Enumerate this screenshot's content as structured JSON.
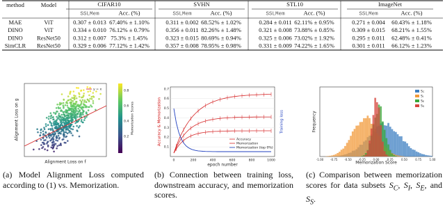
{
  "table": {
    "columns": [
      "method",
      "Model"
    ],
    "groups": [
      "CIFAR10",
      "SVHN",
      "STL10",
      "ImageNet"
    ],
    "subcolumns": [
      "SSLMem",
      "Acc. (%)"
    ],
    "rows": [
      [
        "MAE",
        "ViT",
        "0.307 ± 0.013",
        "67.40% ± 1.10%",
        "0.311 ± 0.002",
        "68.52% ± 1.02%",
        "0.284 ± 0.011",
        "62.11% ± 0.95%",
        "0.271 ± 0.004",
        "60.43% ± 1.18%"
      ],
      [
        "DINO",
        "ViT",
        "0.334 ± 0.010",
        "76.12% ± 0.79%",
        "0.356 ± 0.011",
        "82.26% ± 1.48%",
        "0.321 ± 0.008",
        "73.88% ± 0.85%",
        "0.309 ± 0.015",
        "68.21% ± 1.55%"
      ],
      [
        "DINO",
        "ResNet50",
        "0.312 ± 0.007",
        "75.3% ± 1.45%",
        "0.323 ± 0.015",
        "80.69% ± 0.94%",
        "0.325 ± 0.006",
        "73.02% ± 1.92%",
        "0.295 ± 0.011",
        "62.48% ± 0.41%"
      ],
      [
        "SimCLR",
        "ResNet50",
        "0.329 ± 0.006",
        "77.12% ± 1.42%",
        "0.357 ± 0.008",
        "78.95% ± 0.98%",
        "0.331 ± 0.009",
        "74.22% ± 1.65%",
        "0.301 ± 0.011",
        "66.12% ± 1.23%"
      ]
    ]
  },
  "figures": [
    {
      "caption": "(a) Model Alignment Loss computed according to (1) vs. Memorization.",
      "x_label": "Alignment Loss on f",
      "y_label": "Alignment Loss on g",
      "legend": [
        "y = x"
      ],
      "colorbar_label": "Memorization Scores",
      "colorbar_ticks": [
        "0.8",
        "0.6",
        "0.4",
        "0.2"
      ]
    },
    {
      "caption": "(b) Connection between training loss, downstream accuracy, and memorization scores.",
      "x_label": "epoch number",
      "y_label": "Accuracy & Memorization",
      "y2_label": "Training loss",
      "legend": [
        "Accuracy",
        "Memorization",
        "Memorization (top 0%)"
      ],
      "x_tick_labels": [
        "0",
        "200",
        "400",
        "600",
        "800",
        "1000"
      ],
      "y_tick_labels": [
        "0.1",
        "0.2",
        "0.3",
        "0.4",
        "0.5",
        "0.6",
        "0.7"
      ]
    },
    {
      "caption": "(c) Comparison between memorization scores for data subsets",
      "symbol": "S",
      "subsets": [
        "C",
        "I",
        "E",
        "S"
      ],
      "separators": [
        ", ",
        ", ",
        ", and ",
        "."
      ],
      "x_label": "Memorization Score",
      "y_label": "Frequency",
      "x_tick_labels": [
        "-1.00",
        "-0.75",
        "-0.50",
        "-0.25",
        "0.00",
        "0.25",
        "0.50",
        "0.75",
        "1.00"
      ]
    }
  ]
}
